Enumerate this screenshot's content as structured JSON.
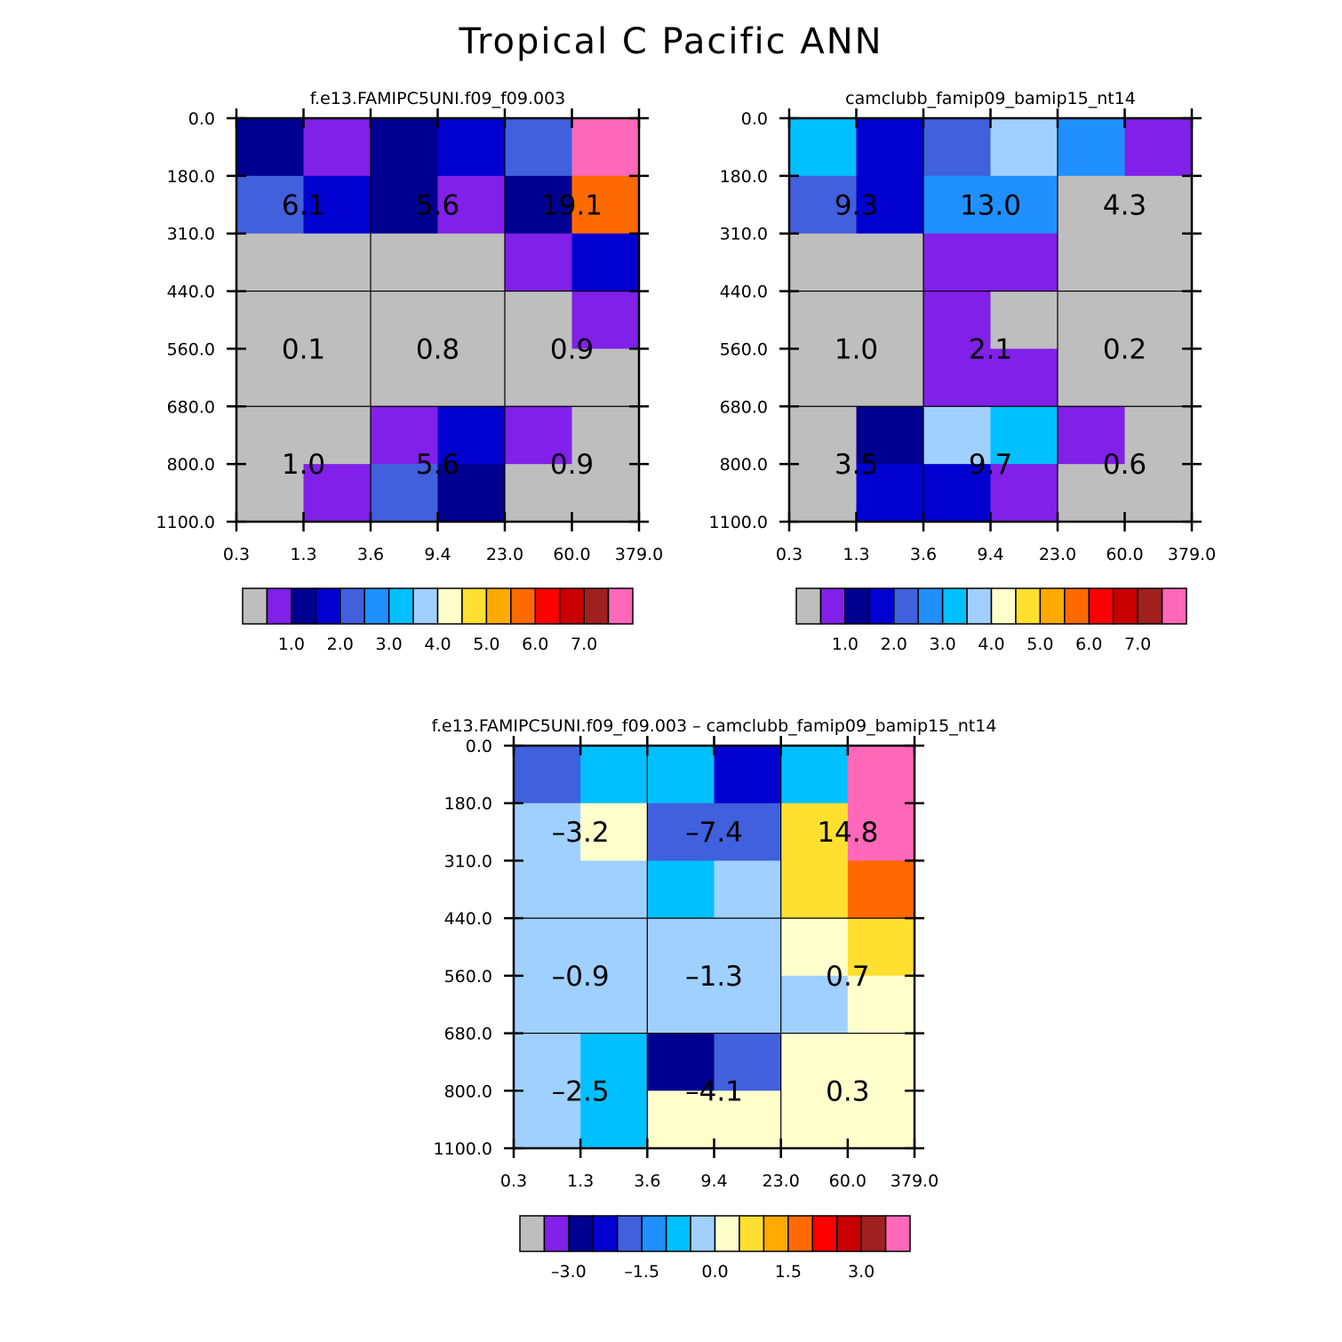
{
  "page_title": "Tropical C Pacific ANN",
  "palette": [
    "#bebebe",
    "#8020e8",
    "#000090",
    "#0000d0",
    "#4060dd",
    "#2090ff",
    "#00c0ff",
    "#a0d0ff",
    "#ffffcc",
    "#ffe030",
    "#ffaa00",
    "#ff6a00",
    "#ff0000",
    "#c80000",
    "#a02020",
    "#ff68b8"
  ],
  "chart_data": [
    {
      "type": "heatmap",
      "title": "f.e13.FAMIPC5UNI.f09_f09.003",
      "x_tick_labels": [
        "0.3",
        "1.3",
        "3.6",
        "9.4",
        "23.0",
        "60.0",
        "379.0"
      ],
      "y_tick_labels": [
        "0.0",
        "180.0",
        "310.0",
        "440.0",
        "560.0",
        "680.0",
        "800.0",
        "1100.0"
      ],
      "cell_colors": [
        [
          2,
          1,
          2,
          3,
          4,
          15
        ],
        [
          4,
          3,
          2,
          1,
          2,
          11
        ],
        [
          0,
          0,
          0,
          0,
          1,
          3
        ],
        [
          0,
          0,
          0,
          0,
          0,
          1
        ],
        [
          0,
          0,
          0,
          0,
          0,
          0
        ],
        [
          0,
          0,
          1,
          3,
          1,
          0
        ],
        [
          0,
          1,
          4,
          2,
          0,
          0
        ]
      ],
      "group_values": [
        [
          "6.1",
          "5.6",
          "19.1"
        ],
        [
          "0.1",
          "0.8",
          "0.9"
        ],
        [
          "1.0",
          "5.6",
          "0.9"
        ]
      ],
      "colorbar_labels": [
        "1.0",
        "2.0",
        "3.0",
        "4.0",
        "5.0",
        "6.0",
        "7.0"
      ]
    },
    {
      "type": "heatmap",
      "title": "camclubb_famip09_bamip15_nt14",
      "x_tick_labels": [
        "0.3",
        "1.3",
        "3.6",
        "9.4",
        "23.0",
        "60.0",
        "379.0"
      ],
      "y_tick_labels": [
        "0.0",
        "180.0",
        "310.0",
        "440.0",
        "560.0",
        "680.0",
        "800.0",
        "1100.0"
      ],
      "cell_colors": [
        [
          6,
          3,
          4,
          7,
          5,
          1
        ],
        [
          4,
          3,
          5,
          5,
          0,
          0
        ],
        [
          0,
          0,
          1,
          1,
          0,
          0
        ],
        [
          0,
          0,
          1,
          0,
          0,
          0
        ],
        [
          0,
          0,
          1,
          1,
          0,
          0
        ],
        [
          0,
          2,
          7,
          6,
          1,
          0
        ],
        [
          0,
          3,
          3,
          1,
          0,
          0
        ]
      ],
      "group_values": [
        [
          "9.3",
          "13.0",
          "4.3"
        ],
        [
          "1.0",
          "2.1",
          "0.2"
        ],
        [
          "3.5",
          "9.7",
          "0.6"
        ]
      ],
      "colorbar_labels": [
        "1.0",
        "2.0",
        "3.0",
        "4.0",
        "5.0",
        "6.0",
        "7.0"
      ]
    },
    {
      "type": "heatmap",
      "title": "f.e13.FAMIPC5UNI.f09_f09.003 – camclubb_famip09_bamip15_nt14",
      "x_tick_labels": [
        "0.3",
        "1.3",
        "3.6",
        "9.4",
        "23.0",
        "60.0",
        "379.0"
      ],
      "y_tick_labels": [
        "0.0",
        "180.0",
        "310.0",
        "440.0",
        "560.0",
        "680.0",
        "800.0",
        "1100.0"
      ],
      "cell_colors": [
        [
          4,
          6,
          6,
          3,
          6,
          15
        ],
        [
          7,
          8,
          4,
          4,
          9,
          15
        ],
        [
          7,
          7,
          6,
          7,
          9,
          11
        ],
        [
          7,
          7,
          7,
          7,
          8,
          9
        ],
        [
          7,
          7,
          7,
          7,
          7,
          8
        ],
        [
          7,
          6,
          2,
          4,
          8,
          8
        ],
        [
          7,
          6,
          8,
          8,
          8,
          8
        ]
      ],
      "group_values": [
        [
          "–3.2",
          "–7.4",
          "14.8"
        ],
        [
          "–0.9",
          "–1.3",
          "0.7"
        ],
        [
          "–2.5",
          "–4.1",
          "0.3"
        ]
      ],
      "colorbar_labels": [
        "–3.0",
        "–1.5",
        "0.0",
        "1.5",
        "3.0"
      ]
    }
  ]
}
